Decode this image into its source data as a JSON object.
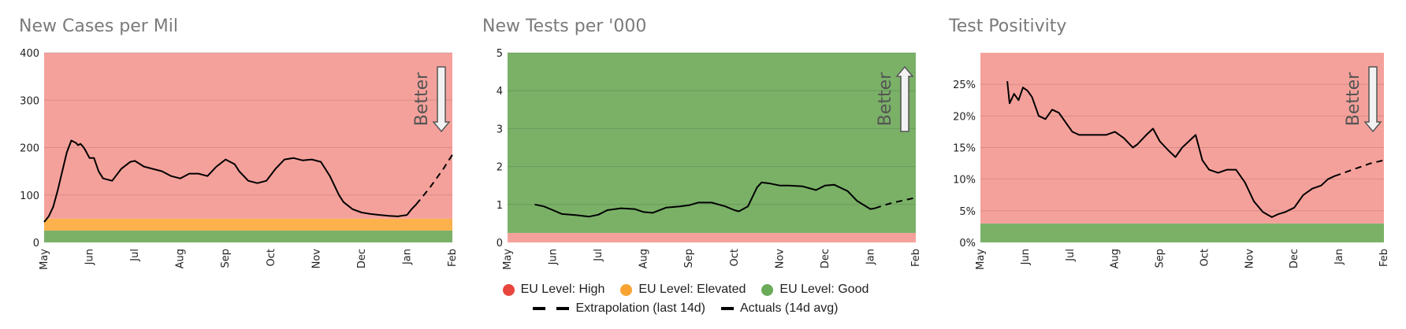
{
  "colors": {
    "high": "#f5a19b",
    "elevated": "#fdb14d",
    "good": "#7ab167",
    "legend_high": "#e8453c",
    "legend_elevated": "#f8a332",
    "legend_good": "#6aaa58",
    "line": "#000000"
  },
  "legend": {
    "high": "EU Level: High",
    "elevated": "EU Level: Elevated",
    "good": "EU Level: Good",
    "extrapolation": "Extrapolation (last 14d)",
    "actuals": "Actuals (14d avg)"
  },
  "chart_data": [
    {
      "type": "line",
      "title": "New Cases per Mil",
      "x_ticks": [
        "May",
        "Jun",
        "Jul",
        "Aug",
        "Sep",
        "Oct",
        "Nov",
        "Dec",
        "Jan",
        "Feb"
      ],
      "y_ticks": [
        "0",
        "100",
        "200",
        "300",
        "400"
      ],
      "ylim": [
        0,
        400
      ],
      "better_label": "Better",
      "better_direction": "down",
      "bands": [
        {
          "level": "good",
          "from": 0,
          "to": 25
        },
        {
          "level": "elevated",
          "from": 25,
          "to": 50
        },
        {
          "level": "high",
          "from": 50,
          "to": 400
        }
      ],
      "series": [
        {
          "style": "solid",
          "x": [
            0,
            0.1,
            0.2,
            0.3,
            0.4,
            0.5,
            0.6,
            0.7,
            0.75,
            0.8,
            0.85,
            0.9,
            1.0,
            1.1,
            1.2,
            1.3,
            1.5,
            1.7,
            1.9,
            2.0,
            2.2,
            2.4,
            2.6,
            2.8,
            3.0,
            3.2,
            3.4,
            3.6,
            3.8,
            4.0,
            4.2,
            4.3,
            4.5,
            4.7,
            4.9,
            5.1,
            5.3,
            5.5,
            5.7,
            5.9,
            6.1,
            6.3,
            6.5,
            6.6,
            6.8,
            7.0,
            7.2,
            7.4,
            7.6,
            7.8,
            8.0,
            8.1,
            8.2
          ],
          "y": [
            43,
            55,
            75,
            110,
            150,
            190,
            215,
            210,
            205,
            208,
            203,
            196,
            178,
            178,
            150,
            135,
            130,
            155,
            170,
            172,
            160,
            155,
            150,
            140,
            135,
            145,
            145,
            140,
            160,
            175,
            165,
            150,
            130,
            125,
            130,
            155,
            175,
            178,
            173,
            175,
            170,
            140,
            100,
            85,
            70,
            63,
            60,
            58,
            56,
            55,
            58,
            70,
            80
          ]
        },
        {
          "style": "dashed",
          "x": [
            8.2,
            8.5,
            8.8,
            9.0
          ],
          "y": [
            80,
            115,
            155,
            185
          ]
        }
      ]
    },
    {
      "type": "line",
      "title": "New Tests per '000",
      "x_ticks": [
        "May",
        "Jun",
        "Jul",
        "Aug",
        "Sep",
        "Oct",
        "Nov",
        "Dec",
        "Jan",
        "Feb"
      ],
      "y_ticks": [
        "0",
        "1",
        "2",
        "3",
        "4",
        "5"
      ],
      "ylim": [
        0,
        5
      ],
      "better_label": "Better",
      "better_direction": "up",
      "bands": [
        {
          "level": "high",
          "from": 0,
          "to": 0.25
        },
        {
          "level": "good",
          "from": 0.25,
          "to": 5
        }
      ],
      "series": [
        {
          "style": "solid",
          "x": [
            0.6,
            0.8,
            1.0,
            1.2,
            1.5,
            1.8,
            2.0,
            2.2,
            2.5,
            2.8,
            3.0,
            3.2,
            3.5,
            3.8,
            4.0,
            4.2,
            4.5,
            4.8,
            5.0,
            5.1,
            5.3,
            5.5,
            5.6,
            5.8,
            6.0,
            6.2,
            6.5,
            6.8,
            7.0,
            7.2,
            7.5,
            7.7,
            7.9,
            8.0,
            8.1
          ],
          "y": [
            1.0,
            0.95,
            0.85,
            0.75,
            0.72,
            0.68,
            0.73,
            0.85,
            0.9,
            0.88,
            0.8,
            0.78,
            0.92,
            0.95,
            0.98,
            1.05,
            1.05,
            0.95,
            0.85,
            0.82,
            0.95,
            1.45,
            1.58,
            1.55,
            1.5,
            1.5,
            1.48,
            1.38,
            1.5,
            1.52,
            1.35,
            1.1,
            0.95,
            0.88,
            0.9
          ]
        },
        {
          "style": "dashed",
          "x": [
            8.1,
            8.3,
            8.5,
            8.7,
            9.0
          ],
          "y": [
            0.9,
            0.98,
            1.05,
            1.1,
            1.18
          ]
        }
      ]
    },
    {
      "type": "line",
      "title": "Test Positivity",
      "x_ticks": [
        "May",
        "Jun",
        "Jul",
        "Aug",
        "Sep",
        "Oct",
        "Nov",
        "Dec",
        "Jan",
        "Feb"
      ],
      "y_ticks": [
        "0%",
        "5%",
        "10%",
        "15%",
        "20%",
        "25%"
      ],
      "ylim": [
        0,
        30
      ],
      "better_label": "Better",
      "better_direction": "down",
      "bands": [
        {
          "level": "good",
          "from": 0,
          "to": 3
        },
        {
          "level": "high",
          "from": 3,
          "to": 30
        }
      ],
      "series": [
        {
          "style": "solid",
          "x": [
            0.6,
            0.65,
            0.75,
            0.85,
            0.95,
            1.05,
            1.15,
            1.3,
            1.45,
            1.6,
            1.75,
            1.9,
            2.05,
            2.2,
            2.5,
            2.8,
            3.0,
            3.2,
            3.4,
            3.5,
            3.7,
            3.85,
            4.0,
            4.2,
            4.35,
            4.5,
            4.65,
            4.8,
            4.95,
            5.1,
            5.3,
            5.5,
            5.7,
            5.9,
            6.1,
            6.3,
            6.5,
            6.65,
            6.8,
            7.0,
            7.2,
            7.4,
            7.6,
            7.75,
            7.9
          ],
          "y": [
            25.5,
            22,
            23.5,
            22.5,
            24.5,
            24,
            23,
            20,
            19.5,
            21,
            20.5,
            19,
            17.5,
            17,
            17,
            17,
            17.5,
            16.5,
            15,
            15.5,
            17,
            18,
            16,
            14.5,
            13.5,
            15,
            16,
            17,
            13,
            11.5,
            11,
            11.5,
            11.5,
            9.5,
            6.5,
            4.8,
            4,
            4.5,
            4.8,
            5.5,
            7.5,
            8.5,
            9,
            10,
            10.5
          ]
        },
        {
          "style": "dashed",
          "x": [
            7.9,
            8.3,
            8.7,
            9.0
          ],
          "y": [
            10.5,
            11.5,
            12.5,
            13
          ]
        }
      ]
    }
  ]
}
